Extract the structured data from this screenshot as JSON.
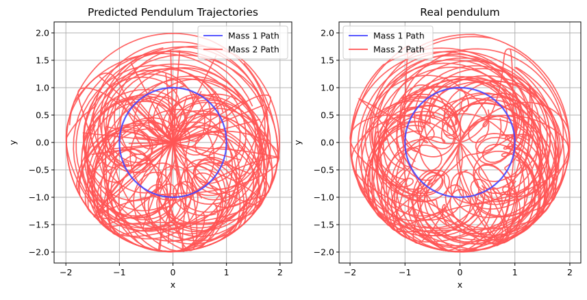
{
  "chart_data": [
    {
      "type": "line",
      "title": "Predicted Pendulum Trajectories",
      "xlabel": "x",
      "ylabel": "y",
      "xlim": [
        -2.22,
        2.22
      ],
      "ylim": [
        -2.2,
        2.2
      ],
      "xticks": [
        -2,
        -1,
        0,
        1,
        2
      ],
      "xticklabels": [
        "−2",
        "−1",
        "0",
        "1",
        "2"
      ],
      "yticks": [
        -2.0,
        -1.5,
        -1.0,
        -0.5,
        0.0,
        0.5,
        1.0,
        1.5,
        2.0
      ],
      "yticklabels": [
        "−2.0",
        "−1.5",
        "−1.0",
        "−0.5",
        "0.0",
        "0.5",
        "1.0",
        "1.5",
        "2.0"
      ],
      "grid": true,
      "legend_position": "upper right",
      "series": [
        {
          "name": "Mass 1 Path",
          "color": "#4444ff",
          "shape": "unit circle",
          "radius": 1.0
        },
        {
          "name": "Mass 2 Path",
          "color": "#ff5555",
          "shape": "chaotic loops",
          "max_radius": 2.0
        }
      ]
    },
    {
      "type": "line",
      "title": "Real pendulum",
      "xlabel": "x",
      "ylabel": "y",
      "xlim": [
        -2.2,
        2.2
      ],
      "ylim": [
        -2.2,
        2.2
      ],
      "xticks": [
        -2,
        -1,
        0,
        1,
        2
      ],
      "xticklabels": [
        "−2",
        "−1",
        "0",
        "1",
        "2"
      ],
      "yticks": [
        -2.0,
        -1.5,
        -1.0,
        -0.5,
        0.0,
        0.5,
        1.0,
        1.5,
        2.0
      ],
      "yticklabels": [
        "−2.0",
        "−1.5",
        "−1.0",
        "−0.5",
        "0.0",
        "0.5",
        "1.0",
        "1.5",
        "2.0"
      ],
      "grid": true,
      "legend_position": "upper left",
      "series": [
        {
          "name": "Mass 1 Path",
          "color": "#4444ff",
          "shape": "unit circle",
          "radius": 1.0
        },
        {
          "name": "Mass 2 Path",
          "color": "#ff5555",
          "shape": "chaotic loops",
          "max_radius": 2.0
        }
      ]
    }
  ]
}
